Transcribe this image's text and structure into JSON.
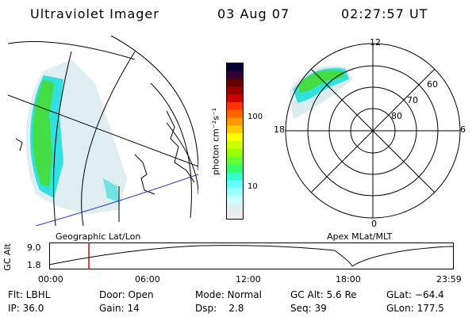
{
  "header": {
    "title": "Ultraviolet Imager",
    "date": "03 Aug 07",
    "time": "02:27:57 UT"
  },
  "colorbar": {
    "unit_label": "photon cm⁻²s⁻¹",
    "tick_labels": [
      "100",
      "10"
    ],
    "colors": [
      "#000033",
      "#330033",
      "#660000",
      "#990000",
      "#cc0000",
      "#ff3300",
      "#ff6600",
      "#ff9900",
      "#ffcc00",
      "#ffff00",
      "#ccff00",
      "#99ff00",
      "#66ff33",
      "#33ff66",
      "#33ffcc",
      "#66ffff",
      "#99ffff",
      "#ccffff",
      "#ddf0f0",
      "#eeeeee"
    ]
  },
  "left_panel": {
    "caption": "Geographic Lat/Lon"
  },
  "right_panel": {
    "caption": "Apex MLat/MLT",
    "mlt_labels": [
      "12",
      "18",
      "6",
      "0"
    ],
    "lat_labels": [
      "60",
      "70",
      "80"
    ]
  },
  "timeline": {
    "axis_label": "GC Alt",
    "alt_ticks": [
      "9.0",
      "1.8"
    ],
    "time_ticks": [
      "00:00",
      "06:00",
      "12:00",
      "18:00",
      "23:59"
    ],
    "marker_color": "#dd0000"
  },
  "info": {
    "flt": "Flt: LBHL",
    "ip": "IP: 36.0",
    "door": "Door: Open",
    "gain": "Gain: 14",
    "mode": "Mode: Normal",
    "dsp": "Dsp:    2.8",
    "gcalt": "GC Alt: 5.6 Re",
    "seq": "Seq: 39",
    "glat": "GLat: −64.4",
    "glon": "GLon: 177.5"
  }
}
